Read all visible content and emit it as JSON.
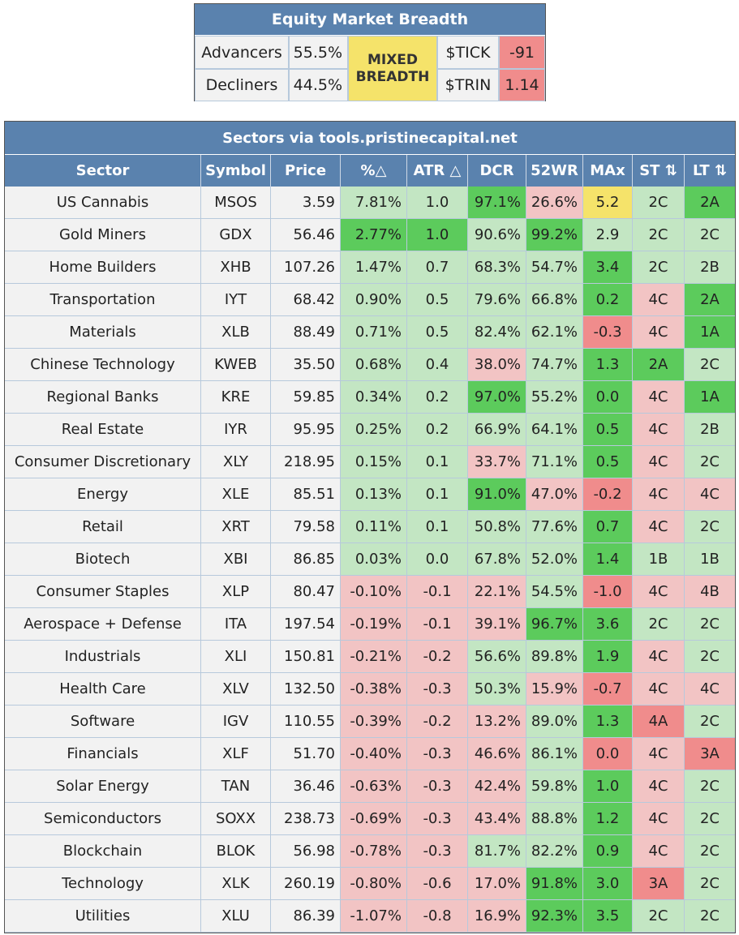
{
  "breadth": {
    "title": "Equity Market Breadth",
    "advancers_label": "Advancers",
    "advancers_value": "55.5%",
    "decliners_label": "Decliners",
    "decliners_value": "44.5%",
    "status_line1": "MIXED",
    "status_line2": "BREADTH",
    "tick_label": "$TICK",
    "tick_value": "-91",
    "trin_label": "$TRIN",
    "trin_value": "1.14"
  },
  "sectors": {
    "title": "Sectors via tools.pristinecapital.net",
    "headers": [
      "Sector",
      "Symbol",
      "Price",
      "%△",
      "ATR △",
      "DCR",
      "52WR",
      "MAx",
      "ST ⇅",
      "LT ⇅"
    ]
  },
  "colors": {
    "header_blue": "#5a82ae",
    "light_green": "#c3e6c3",
    "strong_green": "#5ccb5c",
    "light_red": "#f2c4c4",
    "strong_red": "#f08c8c",
    "yellow": "#f5e36a",
    "grey": "#f2f2f2"
  },
  "rows": [
    {
      "sector": "US Cannabis",
      "symbol": "MSOS",
      "price": "3.59",
      "pct": "7.81%",
      "atr": "1.0",
      "dcr": "97.1%",
      "wr52": "26.6%",
      "max": "5.2",
      "st": "2C",
      "lt": "2A",
      "pct_c": "lg",
      "atr_c": "lg",
      "dcr_c": "sg",
      "wr_c": "lr",
      "max_c": "y",
      "st_c": "lg",
      "lt_c": "sg"
    },
    {
      "sector": "Gold Miners",
      "symbol": "GDX",
      "price": "56.46",
      "pct": "2.77%",
      "atr": "1.0",
      "dcr": "90.6%",
      "wr52": "99.2%",
      "max": "2.9",
      "st": "2C",
      "lt": "2C",
      "pct_c": "sg",
      "atr_c": "sg",
      "dcr_c": "lg",
      "wr_c": "sg",
      "max_c": "lg",
      "st_c": "lg",
      "lt_c": "lg"
    },
    {
      "sector": "Home Builders",
      "symbol": "XHB",
      "price": "107.26",
      "pct": "1.47%",
      "atr": "0.7",
      "dcr": "68.3%",
      "wr52": "54.7%",
      "max": "3.4",
      "st": "2C",
      "lt": "2B",
      "pct_c": "lg",
      "atr_c": "lg",
      "dcr_c": "lg",
      "wr_c": "lg",
      "max_c": "sg",
      "st_c": "lg",
      "lt_c": "lg"
    },
    {
      "sector": "Transportation",
      "symbol": "IYT",
      "price": "68.42",
      "pct": "0.90%",
      "atr": "0.5",
      "dcr": "79.6%",
      "wr52": "66.8%",
      "max": "0.2",
      "st": "4C",
      "lt": "2A",
      "pct_c": "lg",
      "atr_c": "lg",
      "dcr_c": "lg",
      "wr_c": "lg",
      "max_c": "sg",
      "st_c": "lr",
      "lt_c": "sg"
    },
    {
      "sector": "Materials",
      "symbol": "XLB",
      "price": "88.49",
      "pct": "0.71%",
      "atr": "0.5",
      "dcr": "82.4%",
      "wr52": "62.1%",
      "max": "-0.3",
      "st": "4C",
      "lt": "1A",
      "pct_c": "lg",
      "atr_c": "lg",
      "dcr_c": "lg",
      "wr_c": "lg",
      "max_c": "sr",
      "st_c": "lr",
      "lt_c": "sg"
    },
    {
      "sector": "Chinese Technology",
      "symbol": "KWEB",
      "price": "35.50",
      "pct": "0.68%",
      "atr": "0.4",
      "dcr": "38.0%",
      "wr52": "74.7%",
      "max": "1.3",
      "st": "2A",
      "lt": "2C",
      "pct_c": "lg",
      "atr_c": "lg",
      "dcr_c": "lr",
      "wr_c": "lg",
      "max_c": "sg",
      "st_c": "sg",
      "lt_c": "lg"
    },
    {
      "sector": "Regional Banks",
      "symbol": "KRE",
      "price": "59.85",
      "pct": "0.34%",
      "atr": "0.2",
      "dcr": "97.0%",
      "wr52": "55.2%",
      "max": "0.0",
      "st": "4C",
      "lt": "1A",
      "pct_c": "lg",
      "atr_c": "lg",
      "dcr_c": "sg",
      "wr_c": "lg",
      "max_c": "sg",
      "st_c": "lr",
      "lt_c": "sg"
    },
    {
      "sector": "Real Estate",
      "symbol": "IYR",
      "price": "95.95",
      "pct": "0.25%",
      "atr": "0.2",
      "dcr": "66.9%",
      "wr52": "64.1%",
      "max": "0.5",
      "st": "4C",
      "lt": "2B",
      "pct_c": "lg",
      "atr_c": "lg",
      "dcr_c": "lg",
      "wr_c": "lg",
      "max_c": "sg",
      "st_c": "lr",
      "lt_c": "lg"
    },
    {
      "sector": "Consumer Discretionary",
      "symbol": "XLY",
      "price": "218.95",
      "pct": "0.15%",
      "atr": "0.1",
      "dcr": "33.7%",
      "wr52": "71.1%",
      "max": "0.5",
      "st": "4C",
      "lt": "2C",
      "pct_c": "lg",
      "atr_c": "lg",
      "dcr_c": "lr",
      "wr_c": "lg",
      "max_c": "sg",
      "st_c": "lr",
      "lt_c": "lg"
    },
    {
      "sector": "Energy",
      "symbol": "XLE",
      "price": "85.51",
      "pct": "0.13%",
      "atr": "0.1",
      "dcr": "91.0%",
      "wr52": "47.0%",
      "max": "-0.2",
      "st": "4C",
      "lt": "4C",
      "pct_c": "lg",
      "atr_c": "lg",
      "dcr_c": "sg",
      "wr_c": "lr",
      "max_c": "sr",
      "st_c": "lr",
      "lt_c": "lr"
    },
    {
      "sector": "Retail",
      "symbol": "XRT",
      "price": "79.58",
      "pct": "0.11%",
      "atr": "0.1",
      "dcr": "50.8%",
      "wr52": "77.6%",
      "max": "0.7",
      "st": "4C",
      "lt": "2C",
      "pct_c": "lg",
      "atr_c": "lg",
      "dcr_c": "lg",
      "wr_c": "lg",
      "max_c": "sg",
      "st_c": "lr",
      "lt_c": "lg"
    },
    {
      "sector": "Biotech",
      "symbol": "XBI",
      "price": "86.85",
      "pct": "0.03%",
      "atr": "0.0",
      "dcr": "67.8%",
      "wr52": "52.0%",
      "max": "1.4",
      "st": "1B",
      "lt": "1B",
      "pct_c": "lg",
      "atr_c": "lg",
      "dcr_c": "lg",
      "wr_c": "lg",
      "max_c": "sg",
      "st_c": "lg",
      "lt_c": "lg"
    },
    {
      "sector": "Consumer Staples",
      "symbol": "XLP",
      "price": "80.47",
      "pct": "-0.10%",
      "atr": "-0.1",
      "dcr": "22.1%",
      "wr52": "54.5%",
      "max": "-1.0",
      "st": "4C",
      "lt": "4B",
      "pct_c": "lr",
      "atr_c": "lr",
      "dcr_c": "lr",
      "wr_c": "lg",
      "max_c": "sr",
      "st_c": "lr",
      "lt_c": "lr"
    },
    {
      "sector": "Aerospace + Defense",
      "symbol": "ITA",
      "price": "197.54",
      "pct": "-0.19%",
      "atr": "-0.1",
      "dcr": "39.1%",
      "wr52": "96.7%",
      "max": "3.6",
      "st": "2C",
      "lt": "2C",
      "pct_c": "lr",
      "atr_c": "lr",
      "dcr_c": "lr",
      "wr_c": "sg",
      "max_c": "sg",
      "st_c": "lg",
      "lt_c": "lg"
    },
    {
      "sector": "Industrials",
      "symbol": "XLI",
      "price": "150.81",
      "pct": "-0.21%",
      "atr": "-0.2",
      "dcr": "56.6%",
      "wr52": "89.8%",
      "max": "1.9",
      "st": "4C",
      "lt": "2C",
      "pct_c": "lr",
      "atr_c": "lr",
      "dcr_c": "lg",
      "wr_c": "lg",
      "max_c": "sg",
      "st_c": "lr",
      "lt_c": "lg"
    },
    {
      "sector": "Health Care",
      "symbol": "XLV",
      "price": "132.50",
      "pct": "-0.38%",
      "atr": "-0.3",
      "dcr": "50.3%",
      "wr52": "15.9%",
      "max": "-0.7",
      "st": "4C",
      "lt": "4C",
      "pct_c": "lr",
      "atr_c": "lr",
      "dcr_c": "lg",
      "wr_c": "lr",
      "max_c": "sr",
      "st_c": "lr",
      "lt_c": "lr"
    },
    {
      "sector": "Software",
      "symbol": "IGV",
      "price": "110.55",
      "pct": "-0.39%",
      "atr": "-0.2",
      "dcr": "13.2%",
      "wr52": "89.0%",
      "max": "1.3",
      "st": "4A",
      "lt": "2C",
      "pct_c": "lr",
      "atr_c": "lr",
      "dcr_c": "lr",
      "wr_c": "lg",
      "max_c": "sg",
      "st_c": "sr",
      "lt_c": "lg"
    },
    {
      "sector": "Financials",
      "symbol": "XLF",
      "price": "51.70",
      "pct": "-0.40%",
      "atr": "-0.3",
      "dcr": "46.6%",
      "wr52": "86.1%",
      "max": "0.0",
      "st": "4C",
      "lt": "3A",
      "pct_c": "lr",
      "atr_c": "lr",
      "dcr_c": "lr",
      "wr_c": "lg",
      "max_c": "sr",
      "st_c": "lr",
      "lt_c": "sr"
    },
    {
      "sector": "Solar Energy",
      "symbol": "TAN",
      "price": "36.46",
      "pct": "-0.63%",
      "atr": "-0.3",
      "dcr": "42.4%",
      "wr52": "59.8%",
      "max": "1.0",
      "st": "4C",
      "lt": "2C",
      "pct_c": "lr",
      "atr_c": "lr",
      "dcr_c": "lr",
      "wr_c": "lg",
      "max_c": "sg",
      "st_c": "lr",
      "lt_c": "lg"
    },
    {
      "sector": "Semiconductors",
      "symbol": "SOXX",
      "price": "238.73",
      "pct": "-0.69%",
      "atr": "-0.3",
      "dcr": "43.4%",
      "wr52": "88.8%",
      "max": "1.2",
      "st": "4C",
      "lt": "2C",
      "pct_c": "lr",
      "atr_c": "lr",
      "dcr_c": "lr",
      "wr_c": "lg",
      "max_c": "sg",
      "st_c": "lr",
      "lt_c": "lg"
    },
    {
      "sector": "Blockchain",
      "symbol": "BLOK",
      "price": "56.98",
      "pct": "-0.78%",
      "atr": "-0.3",
      "dcr": "81.7%",
      "wr52": "82.2%",
      "max": "0.9",
      "st": "4C",
      "lt": "2C",
      "pct_c": "lr",
      "atr_c": "lr",
      "dcr_c": "lg",
      "wr_c": "lg",
      "max_c": "sg",
      "st_c": "lr",
      "lt_c": "lg"
    },
    {
      "sector": "Technology",
      "symbol": "XLK",
      "price": "260.19",
      "pct": "-0.80%",
      "atr": "-0.6",
      "dcr": "17.0%",
      "wr52": "91.8%",
      "max": "3.0",
      "st": "3A",
      "lt": "2C",
      "pct_c": "lr",
      "atr_c": "lr",
      "dcr_c": "lr",
      "wr_c": "sg",
      "max_c": "sg",
      "st_c": "sr",
      "lt_c": "lg"
    },
    {
      "sector": "Utilities",
      "symbol": "XLU",
      "price": "86.39",
      "pct": "-1.07%",
      "atr": "-0.8",
      "dcr": "16.9%",
      "wr52": "92.3%",
      "max": "3.5",
      "st": "2C",
      "lt": "2C",
      "pct_c": "lr",
      "atr_c": "lr",
      "dcr_c": "lr",
      "wr_c": "sg",
      "max_c": "sg",
      "st_c": "lg",
      "lt_c": "lg"
    }
  ]
}
